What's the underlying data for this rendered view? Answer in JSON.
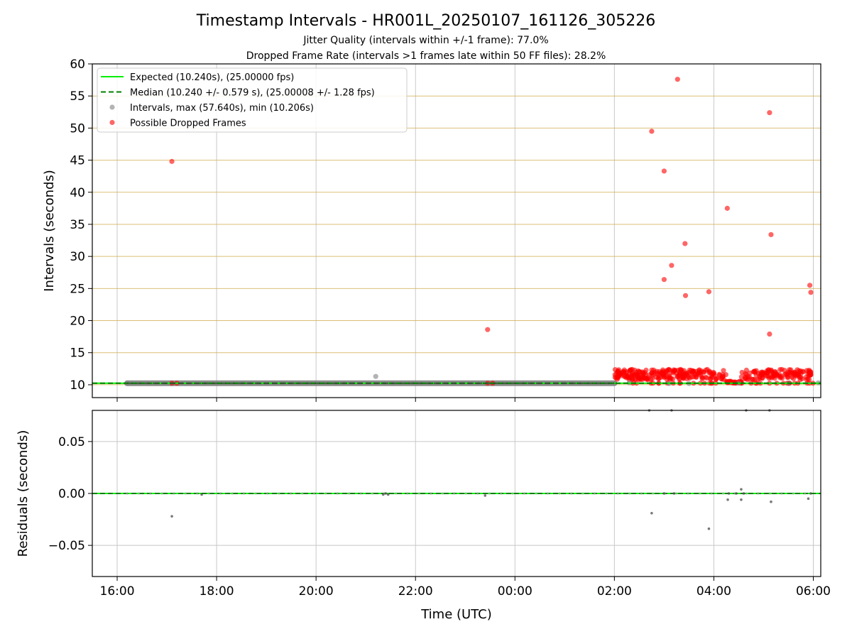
{
  "figure": {
    "title": "Timestamp Intervals - HR001L_20250107_161126_305226",
    "subtitle_1": "Jitter Quality (intervals within +/-1 frame): 77.0%",
    "subtitle_2": "Dropped Frame Rate (intervals >1 frames late within 50 FF files): 28.2%"
  },
  "colors": {
    "expected": "#00ee00",
    "median": "#008000",
    "intervals": "#808080",
    "dropped": "#ff0000",
    "hline": "#d4b055",
    "grid": "#c8c8c8"
  },
  "chart_data": [
    {
      "type": "scatter",
      "xlabel": "",
      "ylabel": "Intervals (seconds)",
      "x_unit": "hours since 16:00 UTC",
      "xlim": [
        -0.5,
        14.15
      ],
      "ylim": [
        8,
        60
      ],
      "yticks": [
        10,
        15,
        20,
        25,
        30,
        35,
        40,
        45,
        50,
        55,
        60
      ],
      "xticks": [
        0,
        2,
        4,
        6,
        8,
        10,
        12,
        14
      ],
      "xtick_labels": [
        "16:00",
        "18:00",
        "20:00",
        "22:00",
        "00:00",
        "02:00",
        "04:00",
        "06:00"
      ],
      "grid": "vertical",
      "horizontal_reference_lines": [
        10,
        15,
        20,
        25,
        30,
        35,
        40,
        45,
        50,
        55,
        60
      ],
      "legend_position": "top-left",
      "legend": [
        {
          "label": "Expected (10.240s), (25.00000 fps)",
          "style": "solid-line",
          "color_key": "expected"
        },
        {
          "label": "Median (10.240 +/- 0.579 s), (25.00008 +/- 1.28 fps)",
          "style": "dashed-line",
          "color_key": "median"
        },
        {
          "label": "Intervals, max (57.640s), min (10.206s)",
          "style": "marker",
          "color_key": "intervals"
        },
        {
          "label": "Possible Dropped Frames",
          "style": "marker",
          "color_key": "dropped"
        }
      ],
      "expected_value": 10.24,
      "median_value": 10.24,
      "intervals_band": {
        "x_start": 0.2,
        "x_end": 10.0,
        "y": 10.24
      },
      "dense_dropped_band": {
        "x_start": 10.0,
        "x_end": 14.0,
        "y_center": 11.6,
        "y_spread": 1.6
      },
      "series": [
        {
          "name": "Intervals",
          "points": [
            [
              0.2,
              10.24
            ],
            [
              5.2,
              11.3
            ],
            [
              10.3,
              10.3
            ],
            [
              11.1,
              10.2
            ],
            [
              11.5,
              10.2
            ],
            [
              12.5,
              10.25
            ],
            [
              13.5,
              10.25
            ],
            [
              14.1,
              10.3
            ]
          ]
        },
        {
          "name": "Possible Dropped Frames",
          "points": [
            [
              1.1,
              44.8
            ],
            [
              1.1,
              10.24
            ],
            [
              1.2,
              10.24
            ],
            [
              7.45,
              18.6
            ],
            [
              7.45,
              10.24
            ],
            [
              7.55,
              10.24
            ],
            [
              10.75,
              49.5
            ],
            [
              11.0,
              43.3
            ],
            [
              11.0,
              26.4
            ],
            [
              11.15,
              28.6
            ],
            [
              11.27,
              57.6
            ],
            [
              11.42,
              32.0
            ],
            [
              11.43,
              23.9
            ],
            [
              11.9,
              24.5
            ],
            [
              12.27,
              37.5
            ],
            [
              13.12,
              52.4
            ],
            [
              13.12,
              17.9
            ],
            [
              13.15,
              33.4
            ],
            [
              13.93,
              25.5
            ],
            [
              13.95,
              24.4
            ]
          ]
        }
      ]
    },
    {
      "type": "scatter",
      "xlabel": "Time (UTC)",
      "ylabel": "Residuals (seconds)",
      "xlim": [
        -0.5,
        14.15
      ],
      "ylim": [
        -0.08,
        0.08
      ],
      "yticks": [
        0.05,
        0.0,
        -0.05
      ],
      "ytick_labels": [
        "0.05",
        "0.00",
        "−0.05"
      ],
      "xticks": [
        0,
        2,
        4,
        6,
        8,
        10,
        12,
        14
      ],
      "xtick_labels": [
        "16:00",
        "18:00",
        "20:00",
        "22:00",
        "00:00",
        "02:00",
        "04:00",
        "06:00"
      ],
      "grid": "both",
      "series": [
        {
          "name": "Residuals",
          "points": [
            [
              1.1,
              -0.022
            ],
            [
              1.7,
              -0.001
            ],
            [
              5.35,
              -0.001
            ],
            [
              5.4,
              0.0
            ],
            [
              5.45,
              -0.001
            ],
            [
              7.4,
              -0.002
            ],
            [
              10.7,
              0.08
            ],
            [
              10.75,
              -0.019
            ],
            [
              11.0,
              0.0
            ],
            [
              11.15,
              0.08
            ],
            [
              11.2,
              0.0
            ],
            [
              11.9,
              -0.034
            ],
            [
              12.28,
              -0.006
            ],
            [
              12.3,
              0.0
            ],
            [
              12.45,
              0.0
            ],
            [
              12.55,
              0.004
            ],
            [
              12.55,
              -0.006
            ],
            [
              12.6,
              0.0
            ],
            [
              12.65,
              0.08
            ],
            [
              13.12,
              0.08
            ],
            [
              13.15,
              -0.008
            ],
            [
              13.9,
              -0.005
            ],
            [
              13.95,
              0.0
            ]
          ]
        }
      ]
    }
  ]
}
